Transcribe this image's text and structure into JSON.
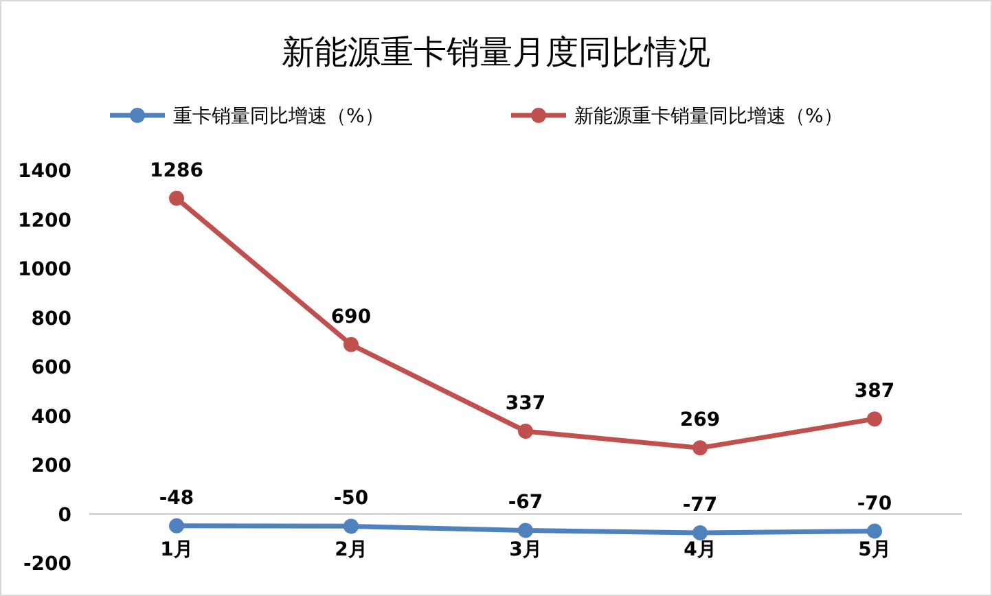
{
  "chart_data": {
    "type": "line",
    "title": "新能源重卡销量月度同比情况",
    "categories": [
      "1月",
      "2月",
      "3月",
      "4月",
      "5月"
    ],
    "series": [
      {
        "name": "重卡销量同比增速（%）",
        "color": "#4f81bd",
        "values": [
          -48,
          -50,
          -67,
          -77,
          -70
        ]
      },
      {
        "name": "新能源重卡销量同比增速（%）",
        "color": "#c0504d",
        "values": [
          1286,
          690,
          337,
          269,
          387
        ]
      }
    ],
    "ylim": [
      -200,
      1400
    ],
    "yticks": [
      -200,
      0,
      200,
      400,
      600,
      800,
      1000,
      1200,
      1400
    ],
    "data_labels": true,
    "legend": "top",
    "marker": "circle",
    "line_style": "solid",
    "grid": false
  }
}
